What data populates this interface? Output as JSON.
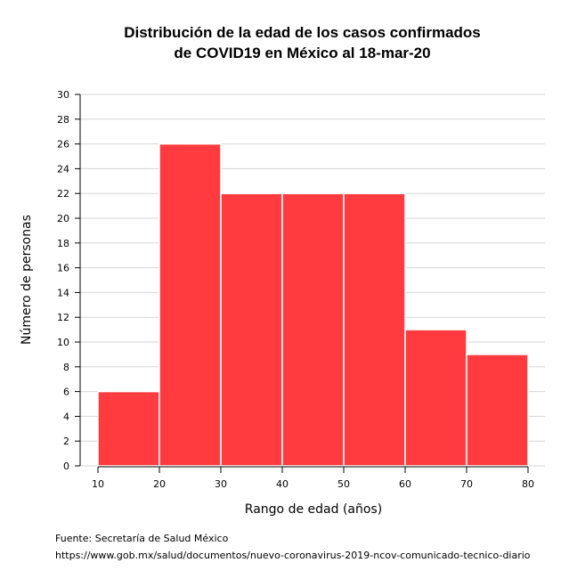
{
  "chart_data": {
    "type": "bar",
    "title_lines": [
      "Distribución de la edad de los casos confirmados",
      "de COVID19 en México al 18-mar-20"
    ],
    "xlabel": "Rango de edad (años)",
    "ylabel": "Número de personas",
    "bins": [
      [
        10,
        20
      ],
      [
        20,
        30
      ],
      [
        30,
        40
      ],
      [
        40,
        50
      ],
      [
        50,
        60
      ],
      [
        60,
        70
      ],
      [
        70,
        80
      ]
    ],
    "values": [
      6,
      26,
      22,
      22,
      22,
      11,
      9
    ],
    "x_ticks": [
      10,
      20,
      30,
      40,
      50,
      60,
      70,
      80
    ],
    "y_ticks": [
      0,
      2,
      4,
      6,
      8,
      10,
      12,
      14,
      16,
      18,
      20,
      22,
      24,
      26,
      28,
      30
    ],
    "xlim": [
      10,
      80
    ],
    "ylim": [
      0,
      30
    ],
    "grid": true,
    "bar_color": "#ff3b3f"
  },
  "caption": {
    "source": "Fuente: Secretaría de Salud México",
    "url": "https://www.gob.mx/salud/documentos/nuevo-coronavirus-2019-ncov-comunicado-tecnico-diario"
  }
}
